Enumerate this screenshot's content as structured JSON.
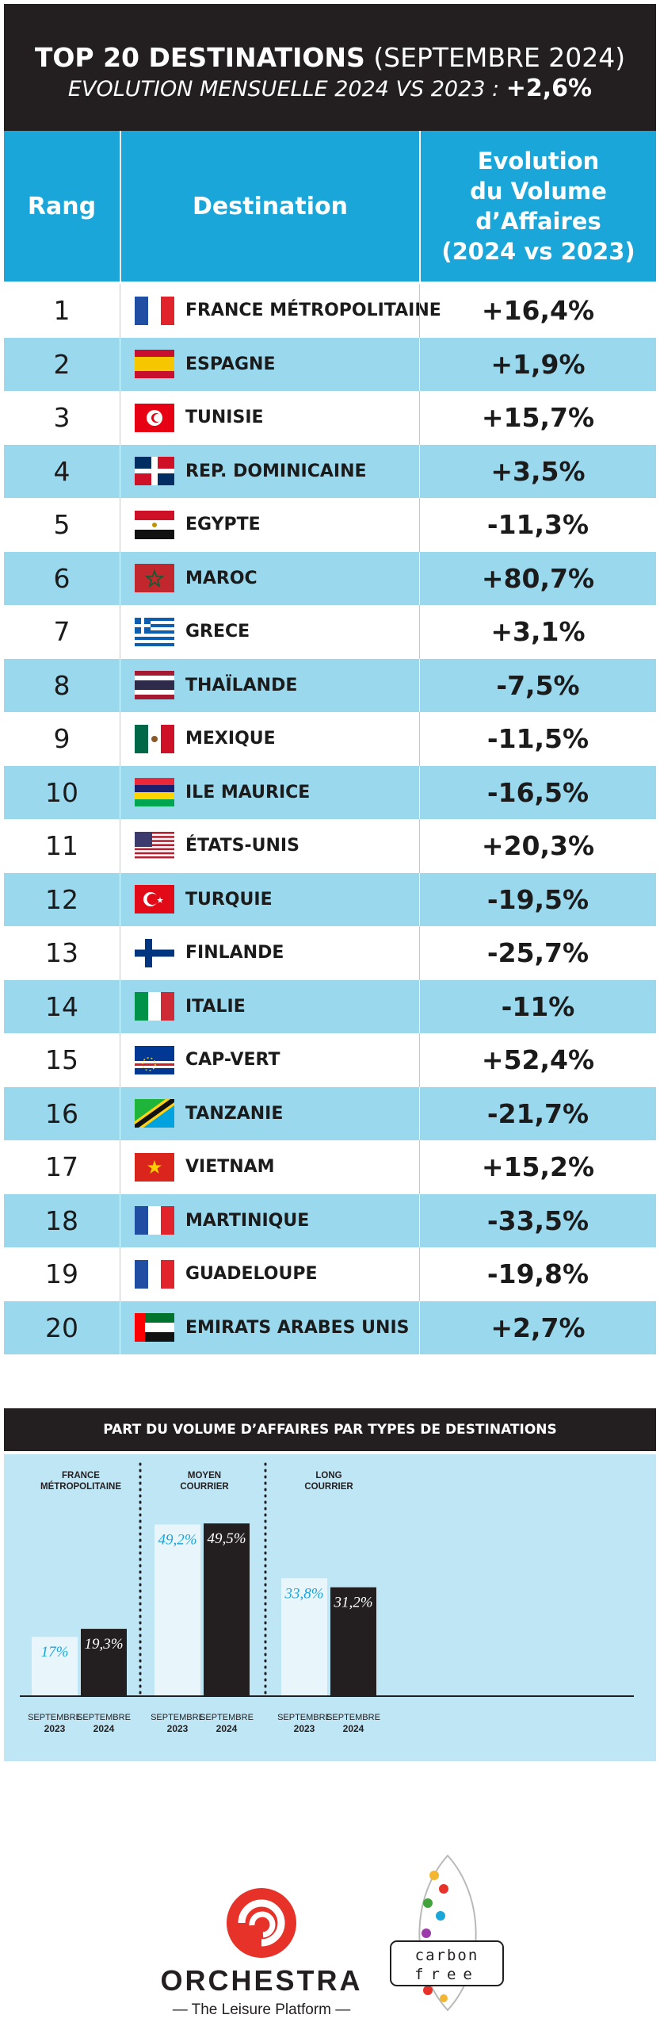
{
  "header": {
    "title_bold": "TOP 20 DESTINATIONS",
    "title_light": "(SEPTEMBRE 2024)",
    "subtitle": "EVOLUTION MENSUELLE 2024 VS 2023 :",
    "subtitle_value": "+2,6%"
  },
  "table": {
    "col_rank": "Rang",
    "col_dest": "Destination",
    "col_evo_lines": [
      "Evolution",
      "du Volume",
      "d’Affaires",
      "(2024 vs 2023)"
    ],
    "rows": [
      {
        "rank": "1",
        "name": "FRANCE MÉTROPOLITAINE",
        "evo": "+16,4%",
        "flag": "france-flag-icon"
      },
      {
        "rank": "2",
        "name": "ESPAGNE",
        "evo": "+1,9%",
        "flag": "spain-flag-icon"
      },
      {
        "rank": "3",
        "name": "TUNISIE",
        "evo": "+15,7%",
        "flag": "tunisia-flag-icon"
      },
      {
        "rank": "4",
        "name": "REP. DOMINICAINE",
        "evo": "+3,5%",
        "flag": "dominican-republic-flag-icon"
      },
      {
        "rank": "5",
        "name": "EGYPTE",
        "evo": "-11,3%",
        "flag": "egypt-flag-icon"
      },
      {
        "rank": "6",
        "name": "MAROC",
        "evo": "+80,7%",
        "flag": "morocco-flag-icon"
      },
      {
        "rank": "7",
        "name": "GRECE",
        "evo": "+3,1%",
        "flag": "greece-flag-icon"
      },
      {
        "rank": "8",
        "name": "THAÏLANDE",
        "evo": "-7,5%",
        "flag": "thailand-flag-icon"
      },
      {
        "rank": "9",
        "name": "MEXIQUE",
        "evo": "-11,5%",
        "flag": "mexico-flag-icon"
      },
      {
        "rank": "10",
        "name": "ILE MAURICE",
        "evo": "-16,5%",
        "flag": "mauritius-flag-icon"
      },
      {
        "rank": "11",
        "name": "ÉTATS-UNIS",
        "evo": "+20,3%",
        "flag": "usa-flag-icon"
      },
      {
        "rank": "12",
        "name": "TURQUIE",
        "evo": "-19,5%",
        "flag": "turkey-flag-icon"
      },
      {
        "rank": "13",
        "name": "FINLANDE",
        "evo": "-25,7%",
        "flag": "finland-flag-icon"
      },
      {
        "rank": "14",
        "name": "ITALIE",
        "evo": "-11%",
        "flag": "italy-flag-icon"
      },
      {
        "rank": "15",
        "name": "CAP-VERT",
        "evo": "+52,4%",
        "flag": "cape-verde-flag-icon"
      },
      {
        "rank": "16",
        "name": "TANZANIE",
        "evo": "-21,7%",
        "flag": "tanzania-flag-icon"
      },
      {
        "rank": "17",
        "name": "VIETNAM",
        "evo": "+15,2%",
        "flag": "vietnam-flag-icon"
      },
      {
        "rank": "18",
        "name": "MARTINIQUE",
        "evo": "-33,5%",
        "flag": "france-flag-icon"
      },
      {
        "rank": "19",
        "name": "GUADELOUPE",
        "evo": "-19,8%",
        "flag": "france-flag-icon"
      },
      {
        "rank": "20",
        "name": "EMIRATS ARABES UNIS",
        "evo": "+2,7%",
        "flag": "uae-flag-icon"
      }
    ]
  },
  "chart_section_title": "PART DU VOLUME D’AFFAIRES PAR TYPES DE DESTINATIONS",
  "chart_data": {
    "type": "bar",
    "title": "PART DU VOLUME D’AFFAIRES PAR TYPES DE DESTINATIONS",
    "groups": [
      {
        "name_lines": [
          "FRANCE",
          "MÉTROPOLITAINE"
        ]
      },
      {
        "name_lines": [
          "MOYEN",
          "COURRIER"
        ]
      },
      {
        "name_lines": [
          "LONG",
          "COURRIER"
        ]
      }
    ],
    "series": [
      {
        "period": "SEPTEMBRE",
        "year": "2023",
        "values": [
          17,
          49.2,
          33.8
        ],
        "labels": [
          "17%",
          "49,2%",
          "33,8%"
        ],
        "fill": "#e8f6fc",
        "label_color": "#1ba6d9"
      },
      {
        "period": "SEPTEMBRE",
        "year": "2024",
        "values": [
          19.3,
          49.5,
          31.2
        ],
        "labels": [
          "19,3%",
          "49,5%",
          "31,2%"
        ],
        "fill": "#231f20",
        "label_color": "#ffffff"
      }
    ]
  },
  "logos": {
    "orchestra_name": "ORCHESTRA",
    "orchestra_tagline": "— The Leisure Platform —",
    "carbon_line1": "carbon",
    "carbon_line2": "free"
  },
  "colors": {
    "accent_blue": "#1ba6d9",
    "row_alt": "#9ad8ee",
    "dark": "#231f20",
    "orchestra_red": "#e63229"
  }
}
